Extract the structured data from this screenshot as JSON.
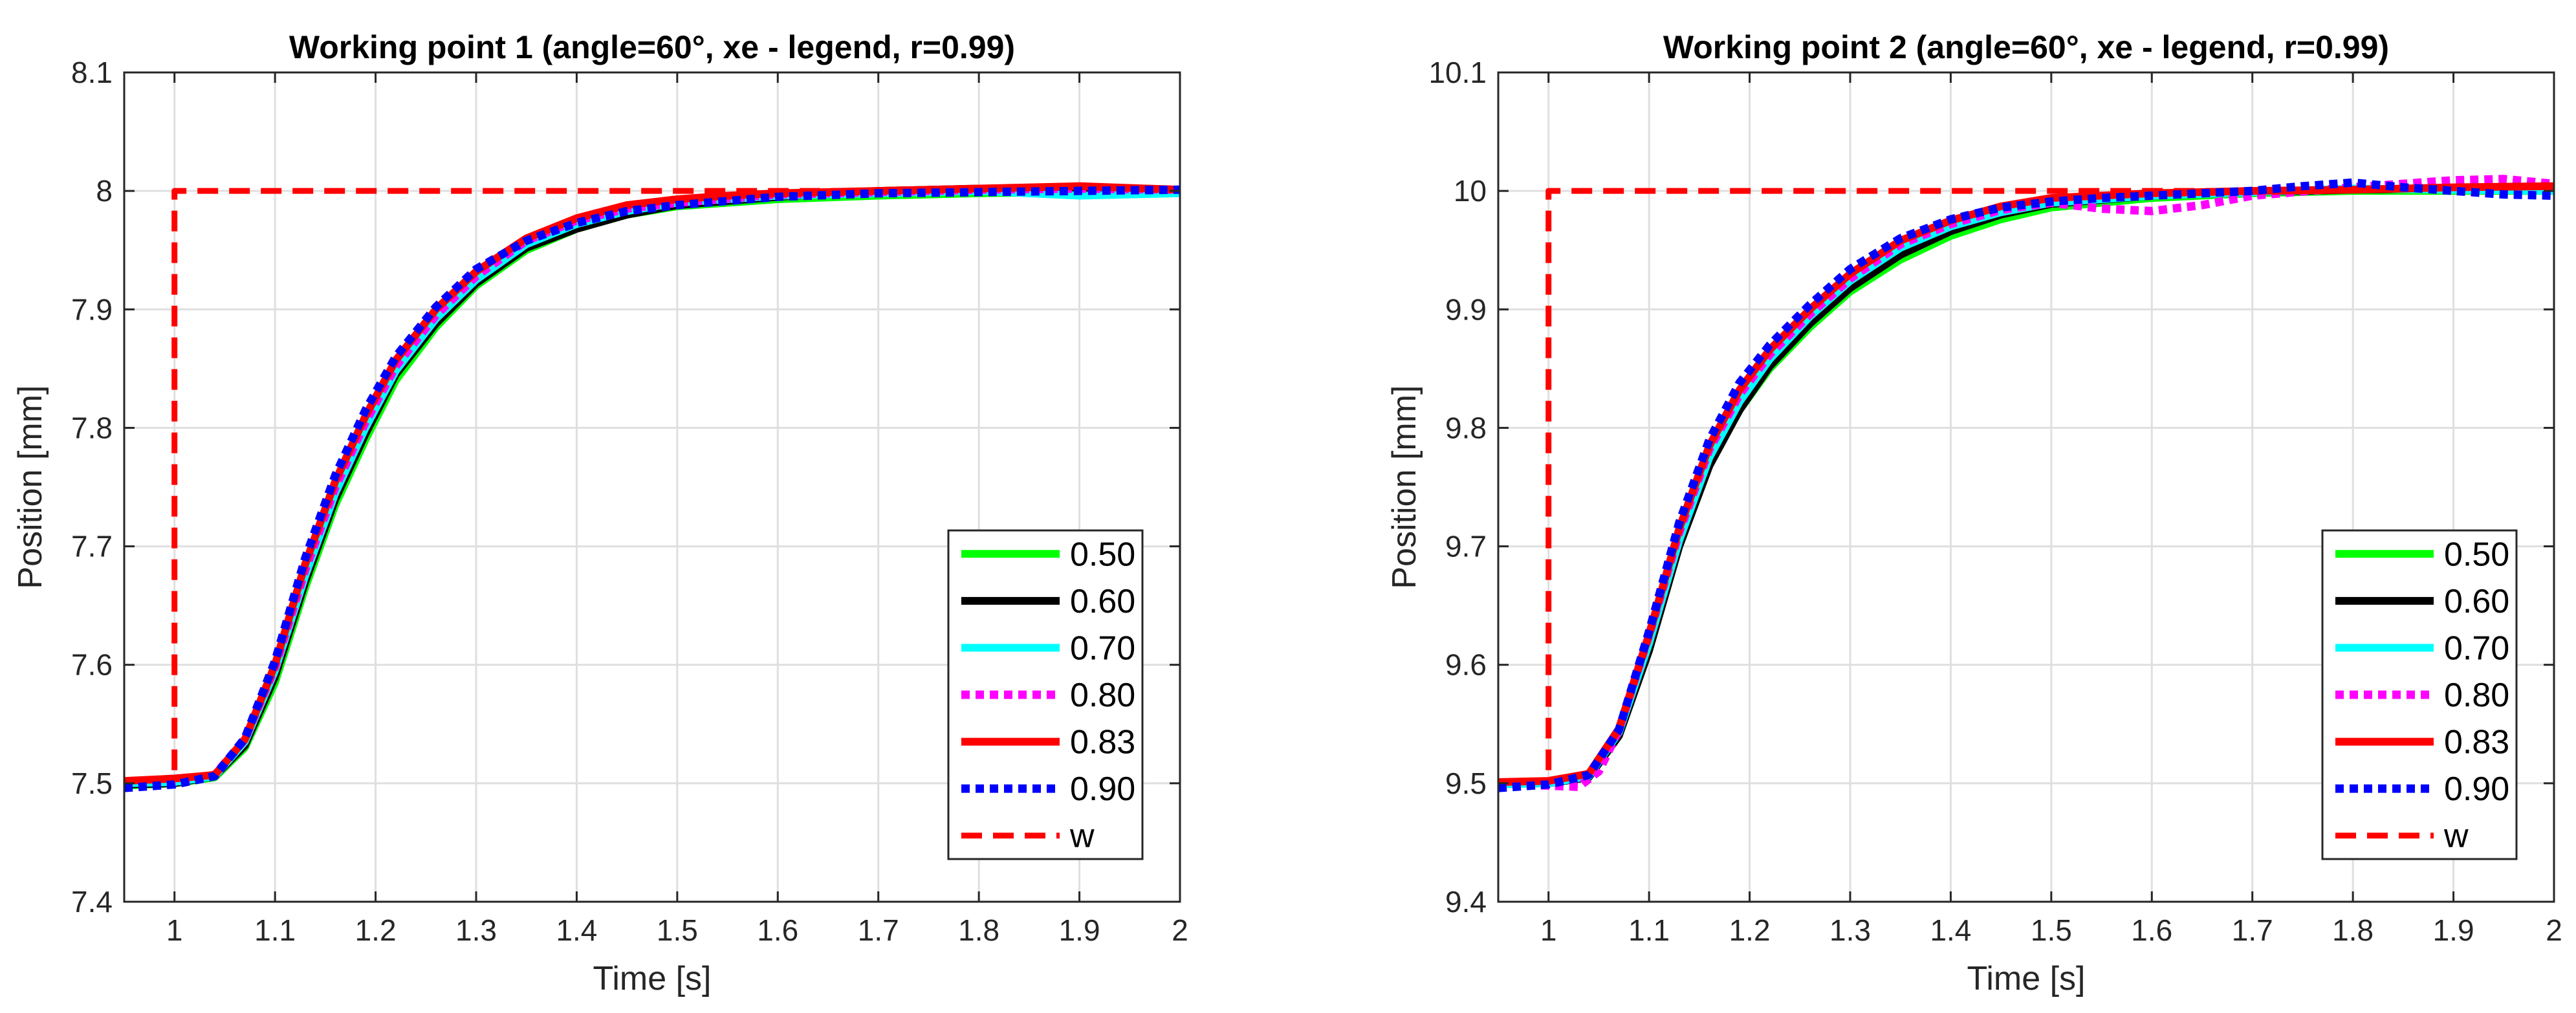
{
  "chart_data": [
    {
      "type": "line",
      "title": "Working point 1  (angle=60°, xe - legend, r=0.99)",
      "xlabel": "Time [s]",
      "ylabel": "Position [mm]",
      "xlim": [
        0.95,
        2.0
      ],
      "ylim": [
        7.4,
        8.1
      ],
      "xticks": [
        1,
        1.1,
        1.2,
        1.3,
        1.4,
        1.5,
        1.6,
        1.7,
        1.8,
        1.9,
        2
      ],
      "xtick_labels": [
        "1",
        "1.1",
        "1.2",
        "1.3",
        "1.4",
        "1.5",
        "1.6",
        "1.7",
        "1.8",
        "1.9",
        "2"
      ],
      "yticks": [
        7.4,
        7.5,
        7.6,
        7.7,
        7.8,
        7.9,
        8.0,
        8.1
      ],
      "ytick_labels": [
        "7.4",
        "7.5",
        "7.6",
        "7.7",
        "7.8",
        "7.9",
        "8",
        "8.1"
      ],
      "grid": true,
      "legend_position": "bottom-right",
      "series": [
        {
          "name": "0.50",
          "color": "#00ff00",
          "style": "solid",
          "x": [
            0.95,
            1.0,
            1.04,
            1.07,
            1.1,
            1.13,
            1.16,
            1.19,
            1.22,
            1.26,
            1.3,
            1.35,
            1.4,
            1.45,
            1.5,
            1.6,
            1.7,
            1.8,
            1.9,
            2.0
          ],
          "y": [
            7.498,
            7.5,
            7.505,
            7.53,
            7.585,
            7.665,
            7.735,
            7.79,
            7.84,
            7.885,
            7.92,
            7.95,
            7.968,
            7.98,
            7.987,
            7.993,
            7.996,
            7.998,
            7.999,
            8.0
          ]
        },
        {
          "name": "0.60",
          "color": "#000000",
          "style": "solid",
          "x": [
            0.95,
            1.0,
            1.04,
            1.07,
            1.1,
            1.13,
            1.16,
            1.19,
            1.22,
            1.26,
            1.3,
            1.35,
            1.4,
            1.45,
            1.5,
            1.6,
            1.7,
            1.8,
            1.9,
            2.0
          ],
          "y": [
            7.499,
            7.5,
            7.506,
            7.532,
            7.59,
            7.67,
            7.74,
            7.795,
            7.845,
            7.888,
            7.922,
            7.952,
            7.968,
            7.98,
            7.988,
            7.995,
            8.0,
            8.002,
            8.002,
            8.001
          ]
        },
        {
          "name": "0.70",
          "color": "#00ffff",
          "style": "solid",
          "x": [
            0.95,
            1.0,
            1.04,
            1.07,
            1.1,
            1.13,
            1.16,
            1.19,
            1.22,
            1.26,
            1.3,
            1.35,
            1.4,
            1.45,
            1.5,
            1.6,
            1.7,
            1.8,
            1.9,
            2.0
          ],
          "y": [
            7.5,
            7.501,
            7.506,
            7.535,
            7.595,
            7.675,
            7.745,
            7.8,
            7.848,
            7.892,
            7.925,
            7.955,
            7.972,
            7.983,
            7.99,
            7.996,
            7.998,
            8.0,
            7.996,
            7.998
          ]
        },
        {
          "name": "0.80",
          "color": "#ff00ff",
          "style": "dotted",
          "x": [
            0.95,
            1.0,
            1.04,
            1.07,
            1.1,
            1.13,
            1.16,
            1.19,
            1.22,
            1.26,
            1.3,
            1.35,
            1.4,
            1.45,
            1.5,
            1.6,
            1.7,
            1.8,
            1.9,
            2.0
          ],
          "y": [
            7.5,
            7.502,
            7.507,
            7.537,
            7.598,
            7.68,
            7.75,
            7.805,
            7.852,
            7.895,
            7.928,
            7.958,
            7.975,
            7.985,
            7.99,
            7.997,
            7.999,
            8.001,
            8.002,
            8.001
          ]
        },
        {
          "name": "0.83",
          "color": "#ff0000",
          "style": "solid",
          "x": [
            0.95,
            1.0,
            1.04,
            1.07,
            1.1,
            1.13,
            1.16,
            1.19,
            1.22,
            1.26,
            1.3,
            1.35,
            1.4,
            1.45,
            1.5,
            1.55,
            1.6,
            1.7,
            1.8,
            1.9,
            2.0
          ],
          "y": [
            7.502,
            7.504,
            7.507,
            7.537,
            7.6,
            7.685,
            7.755,
            7.81,
            7.857,
            7.9,
            7.932,
            7.96,
            7.977,
            7.988,
            7.993,
            7.996,
            7.998,
            8.0,
            8.002,
            8.004,
            8.001
          ]
        },
        {
          "name": "0.90",
          "color": "#0000ff",
          "style": "dotted",
          "x": [
            0.95,
            1.0,
            1.04,
            1.07,
            1.1,
            1.13,
            1.16,
            1.19,
            1.22,
            1.26,
            1.3,
            1.35,
            1.4,
            1.45,
            1.5,
            1.6,
            1.7,
            1.8,
            1.9,
            2.0
          ],
          "y": [
            7.496,
            7.499,
            7.506,
            7.538,
            7.603,
            7.69,
            7.76,
            7.815,
            7.86,
            7.902,
            7.934,
            7.958,
            7.973,
            7.983,
            7.988,
            7.995,
            7.998,
            7.999,
            8.0,
            8.001
          ]
        },
        {
          "name": "w",
          "color": "#ff0000",
          "style": "dashed",
          "x": [
            0.95,
            1.0,
            1.0,
            2.0
          ],
          "y": [
            7.5,
            7.5,
            8.0,
            8.0
          ]
        }
      ]
    },
    {
      "type": "line",
      "title": "Working point 2  (angle=60°, xe - legend, r=0.99)",
      "xlabel": "Time [s]",
      "ylabel": "Position [mm]",
      "xlim": [
        0.95,
        2.0
      ],
      "ylim": [
        9.4,
        10.1
      ],
      "xticks": [
        1,
        1.1,
        1.2,
        1.3,
        1.4,
        1.5,
        1.6,
        1.7,
        1.8,
        1.9,
        2
      ],
      "xtick_labels": [
        "1",
        "1.1",
        "1.2",
        "1.3",
        "1.4",
        "1.5",
        "1.6",
        "1.7",
        "1.8",
        "1.9",
        "2"
      ],
      "yticks": [
        9.4,
        9.5,
        9.6,
        9.7,
        9.8,
        9.9,
        10.0,
        10.1
      ],
      "ytick_labels": [
        "9.4",
        "9.5",
        "9.6",
        "9.7",
        "9.8",
        "9.9",
        "10",
        "10.1"
      ],
      "grid": true,
      "legend_position": "bottom-right",
      "series": [
        {
          "name": "0.50",
          "color": "#00ff00",
          "style": "solid",
          "x": [
            0.95,
            1.0,
            1.04,
            1.07,
            1.1,
            1.13,
            1.16,
            1.19,
            1.22,
            1.26,
            1.3,
            1.35,
            1.4,
            1.45,
            1.5,
            1.6,
            1.7,
            1.8,
            1.9,
            2.0
          ],
          "y": [
            9.5,
            9.5,
            9.507,
            9.545,
            9.62,
            9.705,
            9.77,
            9.815,
            9.85,
            9.885,
            9.915,
            9.942,
            9.962,
            9.976,
            9.986,
            9.994,
            9.998,
            10.0,
            10.0,
            10.0
          ]
        },
        {
          "name": "0.60",
          "color": "#000000",
          "style": "solid",
          "x": [
            0.95,
            1.0,
            1.04,
            1.07,
            1.1,
            1.13,
            1.16,
            1.19,
            1.22,
            1.26,
            1.3,
            1.35,
            1.4,
            1.45,
            1.5,
            1.6,
            1.7,
            1.8,
            1.9,
            2.0
          ],
          "y": [
            9.501,
            9.5,
            9.505,
            9.54,
            9.612,
            9.7,
            9.768,
            9.815,
            9.852,
            9.888,
            9.918,
            9.946,
            9.966,
            9.98,
            9.989,
            9.996,
            9.999,
            10.001,
            10.002,
            10.001
          ]
        },
        {
          "name": "0.70",
          "color": "#00ffff",
          "style": "solid",
          "x": [
            0.95,
            1.0,
            1.04,
            1.07,
            1.1,
            1.13,
            1.16,
            1.19,
            1.22,
            1.26,
            1.3,
            1.35,
            1.4,
            1.45,
            1.5,
            1.6,
            1.7,
            1.8,
            1.9,
            2.0
          ],
          "y": [
            9.499,
            9.5,
            9.506,
            9.543,
            9.618,
            9.705,
            9.775,
            9.822,
            9.858,
            9.894,
            9.924,
            9.952,
            9.97,
            9.982,
            9.99,
            9.996,
            9.999,
            10.002,
            10.001,
            10.0
          ]
        },
        {
          "name": "0.80",
          "color": "#ff00ff",
          "style": "dotted",
          "x": [
            0.95,
            1.0,
            1.03,
            1.05,
            1.07,
            1.1,
            1.13,
            1.16,
            1.19,
            1.22,
            1.26,
            1.3,
            1.35,
            1.4,
            1.45,
            1.5,
            1.55,
            1.6,
            1.65,
            1.7,
            1.8,
            1.9,
            1.95,
            2.0
          ],
          "y": [
            9.5,
            9.498,
            9.497,
            9.51,
            9.545,
            9.625,
            9.712,
            9.782,
            9.828,
            9.862,
            9.896,
            9.926,
            9.955,
            9.972,
            9.984,
            9.99,
            9.985,
            9.983,
            9.988,
            9.996,
            10.003,
            10.009,
            10.01,
            10.006
          ]
        },
        {
          "name": "0.83",
          "color": "#ff0000",
          "style": "solid",
          "x": [
            0.95,
            1.0,
            1.04,
            1.07,
            1.1,
            1.13,
            1.16,
            1.19,
            1.22,
            1.26,
            1.3,
            1.35,
            1.4,
            1.45,
            1.5,
            1.6,
            1.7,
            1.8,
            1.9,
            2.0
          ],
          "y": [
            9.501,
            9.502,
            9.508,
            9.546,
            9.625,
            9.715,
            9.785,
            9.832,
            9.866,
            9.9,
            9.93,
            9.958,
            9.975,
            9.987,
            9.994,
            9.998,
            10.0,
            10.001,
            10.003,
            10.004
          ]
        },
        {
          "name": "0.90",
          "color": "#0000ff",
          "style": "dotted",
          "x": [
            0.95,
            1.0,
            1.04,
            1.07,
            1.1,
            1.13,
            1.16,
            1.19,
            1.22,
            1.26,
            1.3,
            1.35,
            1.4,
            1.45,
            1.5,
            1.55,
            1.6,
            1.7,
            1.75,
            1.8,
            1.85,
            1.9,
            1.95,
            2.0
          ],
          "y": [
            9.496,
            9.499,
            9.507,
            9.545,
            9.628,
            9.72,
            9.79,
            9.838,
            9.87,
            9.904,
            9.934,
            9.96,
            9.976,
            9.986,
            9.991,
            9.994,
            9.996,
            10.0,
            10.004,
            10.007,
            10.003,
            10.0,
            9.997,
            9.996
          ]
        },
        {
          "name": "w",
          "color": "#ff0000",
          "style": "dashed",
          "x": [
            0.95,
            1.0,
            1.0,
            2.0
          ],
          "y": [
            9.5,
            9.5,
            10.0,
            10.0
          ]
        }
      ]
    }
  ]
}
